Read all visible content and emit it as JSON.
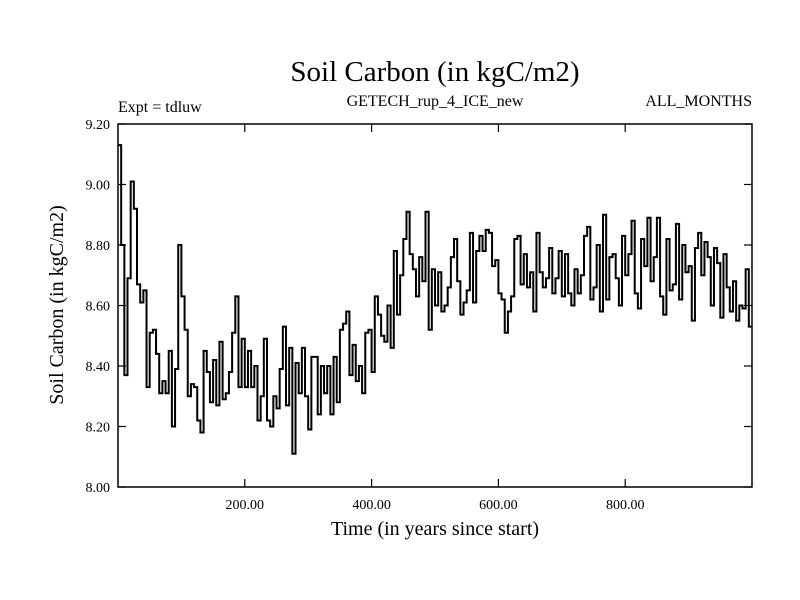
{
  "chart_data": {
    "type": "line",
    "style": "step",
    "title": "Soil Carbon (in kgC/m2)",
    "header_left": "Expt = tdluw",
    "header_center": "GETECH_rup_4_ICE_new",
    "header_right": "ALL_MONTHS",
    "xlabel": "Time (in years since start)",
    "ylabel": "Soil Carbon (in kgC/m2)",
    "xlim": [
      0,
      1000
    ],
    "ylim": [
      8.0,
      9.2
    ],
    "x_ticks": [
      "200.00",
      "400.00",
      "600.00",
      "800.00"
    ],
    "x_tick_values": [
      200,
      400,
      600,
      800
    ],
    "y_ticks": [
      "8.00",
      "8.20",
      "8.40",
      "8.60",
      "8.80",
      "9.00",
      "9.20"
    ],
    "y_tick_values": [
      8.0,
      8.2,
      8.4,
      8.6,
      8.8,
      9.0,
      9.2
    ],
    "series": [
      {
        "name": "Soil Carbon",
        "color": "#000000",
        "x_start": 0,
        "x_step": 5,
        "values": [
          9.13,
          8.8,
          8.37,
          8.69,
          9.01,
          8.92,
          8.67,
          8.61,
          8.65,
          8.33,
          8.51,
          8.52,
          8.44,
          8.31,
          8.35,
          8.31,
          8.45,
          8.2,
          8.39,
          8.8,
          8.63,
          8.52,
          8.3,
          8.34,
          8.33,
          8.22,
          8.18,
          8.45,
          8.38,
          8.28,
          8.42,
          8.27,
          8.48,
          8.29,
          8.31,
          8.38,
          8.51,
          8.63,
          8.33,
          8.49,
          8.33,
          8.45,
          8.33,
          8.4,
          8.22,
          8.3,
          8.49,
          8.22,
          8.2,
          8.3,
          8.26,
          8.39,
          8.53,
          8.27,
          8.46,
          8.11,
          8.41,
          8.31,
          8.46,
          8.3,
          8.19,
          8.43,
          8.43,
          8.24,
          8.4,
          8.31,
          8.4,
          8.24,
          8.43,
          8.28,
          8.52,
          8.54,
          8.58,
          8.37,
          8.47,
          8.35,
          8.4,
          8.31,
          8.51,
          8.52,
          8.38,
          8.63,
          8.57,
          8.5,
          8.48,
          8.6,
          8.46,
          8.78,
          8.57,
          8.7,
          8.82,
          8.91,
          8.77,
          8.72,
          8.63,
          8.76,
          8.68,
          8.91,
          8.52,
          8.72,
          8.6,
          8.71,
          8.58,
          8.6,
          8.66,
          8.76,
          8.82,
          8.68,
          8.57,
          8.61,
          8.65,
          8.84,
          8.61,
          8.78,
          8.83,
          8.78,
          8.85,
          8.84,
          8.73,
          8.75,
          8.64,
          8.62,
          8.51,
          8.58,
          8.63,
          8.82,
          8.83,
          8.67,
          8.77,
          8.66,
          8.71,
          8.58,
          8.84,
          8.71,
          8.66,
          8.69,
          8.79,
          8.64,
          8.69,
          8.78,
          8.63,
          8.77,
          8.64,
          8.6,
          8.72,
          8.64,
          8.7,
          8.83,
          8.86,
          8.62,
          8.66,
          8.8,
          8.58,
          8.9,
          8.62,
          8.76,
          8.77,
          8.69,
          8.6,
          8.83,
          8.7,
          8.77,
          8.88,
          8.64,
          8.59,
          8.82,
          8.73,
          8.89,
          8.68,
          8.76,
          8.89,
          8.63,
          8.57,
          8.82,
          8.65,
          8.67,
          8.87,
          8.62,
          8.8,
          8.71,
          8.73,
          8.55,
          8.79,
          8.84,
          8.7,
          8.81,
          8.76,
          8.6,
          8.79,
          8.74,
          8.56,
          8.77,
          8.66,
          8.58,
          8.68,
          8.55,
          8.6,
          8.59,
          8.72,
          8.53
        ]
      }
    ]
  }
}
